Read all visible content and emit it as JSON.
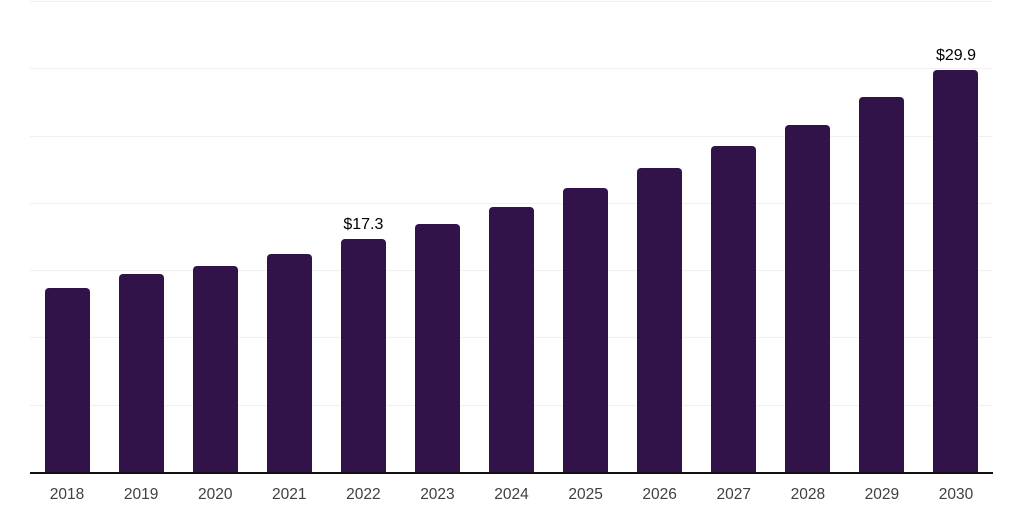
{
  "chart_data": {
    "type": "bar",
    "title": "",
    "xlabel": "",
    "ylabel": "",
    "categories": [
      "2018",
      "2019",
      "2020",
      "2021",
      "2022",
      "2023",
      "2024",
      "2025",
      "2026",
      "2027",
      "2028",
      "2029",
      "2030"
    ],
    "values": [
      13.7,
      14.7,
      15.3,
      16.2,
      17.3,
      18.4,
      19.7,
      21.1,
      22.6,
      24.2,
      25.8,
      27.9,
      29.9
    ],
    "point_labels": [
      {
        "category": "2022",
        "text": "$17.3"
      },
      {
        "category": "2030",
        "text": "$29.9"
      }
    ],
    "ylim": [
      0,
      35
    ],
    "gridline_step": 5,
    "grid": "horizontal",
    "legend": "none",
    "colors": {
      "bar": "#321349",
      "gridline": "#f0f0f0",
      "axis_line": "#111111",
      "point_label_text": "#000000",
      "tick_label_text": "#404040",
      "background": "#ffffff"
    }
  }
}
